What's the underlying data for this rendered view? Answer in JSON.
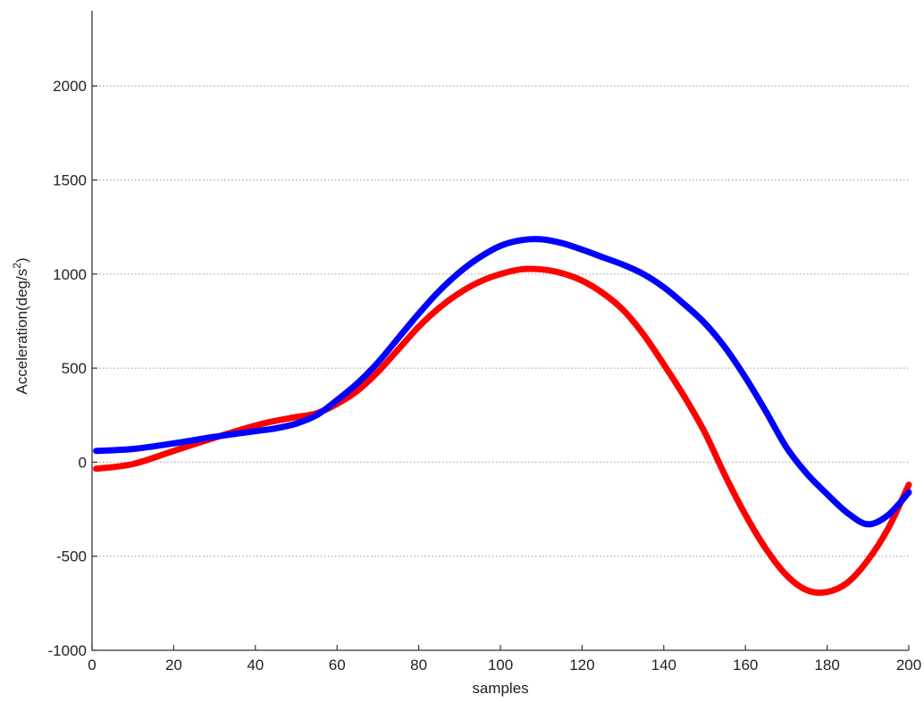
{
  "chart_data": {
    "type": "line",
    "title": "",
    "xlabel": "samples",
    "ylabel_main": "Acceleration(deg/s",
    "ylabel_sup": "2",
    "ylabel_close": ")",
    "xlim": [
      0,
      200
    ],
    "ylim": [
      -1000,
      2400
    ],
    "xticks": [
      0,
      20,
      40,
      60,
      80,
      100,
      120,
      140,
      160,
      180,
      200
    ],
    "yticks": [
      -1000,
      -500,
      0,
      500,
      1000,
      1500,
      2000
    ],
    "grid": "horizontal dotted",
    "x": [
      1,
      10,
      20,
      30,
      40,
      45,
      50,
      55,
      60,
      65,
      70,
      75,
      80,
      85,
      90,
      95,
      100,
      105,
      110,
      115,
      120,
      125,
      130,
      135,
      140,
      145,
      150,
      155,
      160,
      165,
      170,
      175,
      180,
      185,
      190,
      195,
      200
    ],
    "series": [
      {
        "color": "#ff0000",
        "values": [
          -35,
          -10,
          60,
          130,
          195,
          220,
          240,
          260,
          310,
          380,
          480,
          600,
          720,
          820,
          900,
          960,
          1000,
          1025,
          1025,
          1005,
          965,
          900,
          810,
          680,
          520,
          350,
          160,
          -70,
          -280,
          -460,
          -600,
          -680,
          -690,
          -640,
          -520,
          -350,
          -120
        ]
      },
      {
        "color": "#0000ff",
        "values": [
          60,
          70,
          100,
          135,
          165,
          180,
          205,
          250,
          330,
          420,
          530,
          660,
          790,
          910,
          1010,
          1090,
          1150,
          1180,
          1185,
          1165,
          1130,
          1090,
          1050,
          1000,
          930,
          840,
          740,
          610,
          450,
          270,
          80,
          -60,
          -170,
          -270,
          -330,
          -280,
          -160
        ]
      }
    ]
  }
}
